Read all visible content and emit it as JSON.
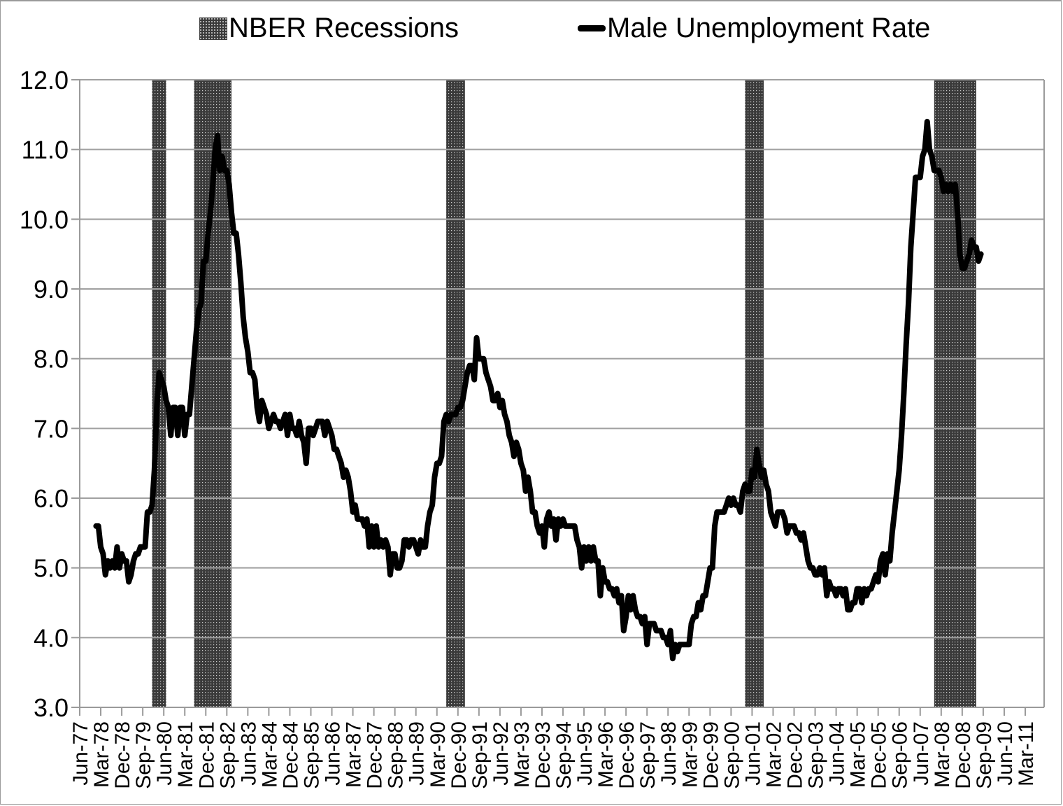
{
  "legend": {
    "recessions_label": "NBER Recessions",
    "line_label": "Male Unemployment Rate"
  },
  "colors": {
    "line": "#000000",
    "recession_fill": "#3a3a3a",
    "grid": "#a0a0a0",
    "axis": "#9a9a9a"
  },
  "chart_data": {
    "type": "line",
    "title": "",
    "xlabel": "",
    "ylabel": "",
    "ylim": [
      3.0,
      12.0
    ],
    "yticks": [
      "3.0",
      "4.0",
      "5.0",
      "6.0",
      "7.0",
      "8.0",
      "9.0",
      "10.0",
      "11.0",
      "12.0"
    ],
    "xticks": [
      "Jun-77",
      "Mar-78",
      "Dec-78",
      "Sep-79",
      "Jun-80",
      "Mar-81",
      "Dec-81",
      "Sep-82",
      "Jun-83",
      "Mar-84",
      "Dec-84",
      "Sep-85",
      "Jun-86",
      "Mar-87",
      "Dec-87",
      "Sep-88",
      "Jun-89",
      "Mar-90",
      "Dec-90",
      "Sep-91",
      "Jun-92",
      "Mar-93",
      "Dec-93",
      "Sep-94",
      "Jun-95",
      "Mar-96",
      "Dec-96",
      "Sep-97",
      "Jun-98",
      "Mar-99",
      "Dec-99",
      "Sep-00",
      "Jun-01",
      "Mar-02",
      "Dec-02",
      "Sep-03",
      "Jun-04",
      "Mar-05",
      "Dec-05",
      "Sep-06",
      "Jun-07",
      "Mar-08",
      "Dec-08",
      "Sep-09",
      "Jun-10",
      "Mar-11"
    ],
    "grid": true,
    "legend_position": "top",
    "recessions": [
      {
        "start": "Jan-80",
        "end": "Jul-80"
      },
      {
        "start": "Jul-81",
        "end": "Nov-82"
      },
      {
        "start": "Jul-90",
        "end": "Mar-91"
      },
      {
        "start": "Mar-01",
        "end": "Nov-01"
      },
      {
        "start": "Dec-07",
        "end": "Jun-09"
      }
    ],
    "series": [
      {
        "name": "Male Unemployment Rate",
        "start": "Jan-78",
        "frequency": "monthly",
        "values": [
          5.6,
          5.6,
          5.3,
          5.2,
          4.9,
          5.1,
          5.0,
          5.1,
          5.0,
          5.3,
          5.0,
          5.2,
          5.1,
          5.1,
          4.8,
          4.9,
          5.1,
          5.2,
          5.2,
          5.3,
          5.3,
          5.3,
          5.8,
          5.8,
          5.9,
          6.4,
          7.3,
          7.8,
          7.7,
          7.6,
          7.4,
          7.3,
          6.9,
          7.3,
          7.3,
          6.9,
          7.3,
          7.3,
          6.9,
          7.2,
          7.2,
          7.6,
          8.0,
          8.4,
          8.7,
          8.8,
          9.4,
          9.4,
          9.8,
          10.1,
          10.5,
          11.0,
          11.2,
          10.7,
          10.9,
          10.7,
          10.7,
          10.5,
          10.1,
          9.8,
          9.8,
          9.5,
          9.1,
          8.6,
          8.3,
          8.1,
          7.8,
          7.8,
          7.7,
          7.3,
          7.1,
          7.4,
          7.3,
          7.2,
          7.0,
          7.1,
          7.2,
          7.1,
          7.1,
          7.0,
          7.1,
          7.2,
          6.9,
          7.2,
          7.0,
          7.0,
          6.9,
          7.1,
          6.9,
          6.8,
          6.5,
          7.0,
          7.0,
          6.9,
          7.0,
          7.1,
          7.1,
          7.1,
          6.9,
          7.1,
          7.0,
          6.9,
          6.7,
          6.7,
          6.6,
          6.5,
          6.3,
          6.4,
          6.3,
          6.1,
          5.8,
          5.9,
          5.7,
          5.7,
          5.7,
          5.6,
          5.7,
          5.3,
          5.6,
          5.3,
          5.6,
          5.3,
          5.4,
          5.3,
          5.4,
          5.3,
          4.9,
          5.2,
          5.2,
          5.0,
          5.0,
          5.1,
          5.4,
          5.4,
          5.3,
          5.4,
          5.4,
          5.3,
          5.2,
          5.4,
          5.3,
          5.3,
          5.6,
          5.8,
          5.9,
          6.3,
          6.5,
          6.5,
          6.6,
          7.1,
          7.2,
          7.1,
          7.2,
          7.2,
          7.2,
          7.3,
          7.3,
          7.4,
          7.6,
          7.8,
          7.9,
          7.9,
          7.7,
          8.3,
          8.0,
          8.0,
          8.0,
          7.8,
          7.7,
          7.6,
          7.4,
          7.4,
          7.5,
          7.3,
          7.4,
          7.2,
          7.1,
          6.9,
          6.8,
          6.6,
          6.8,
          6.7,
          6.5,
          6.4,
          6.1,
          6.3,
          6.1,
          5.8,
          5.8,
          5.6,
          5.5,
          5.6,
          5.3,
          5.7,
          5.8,
          5.6,
          5.7,
          5.4,
          5.7,
          5.6,
          5.7,
          5.6,
          5.6,
          5.6,
          5.6,
          5.6,
          5.4,
          5.3,
          5.0,
          5.3,
          5.1,
          5.3,
          5.1,
          5.3,
          5.1,
          5.1,
          4.6,
          5.0,
          4.8,
          4.8,
          4.7,
          4.7,
          4.6,
          4.7,
          4.5,
          4.6,
          4.1,
          4.3,
          4.6,
          4.4,
          4.6,
          4.4,
          4.3,
          4.3,
          4.2,
          4.3,
          3.9,
          4.2,
          4.2,
          4.2,
          4.1,
          4.1,
          4.1,
          4.0,
          4.0,
          3.9,
          4.1,
          3.7,
          3.9,
          3.8,
          3.9,
          3.9,
          3.9,
          3.9,
          3.9,
          4.2,
          4.3,
          4.3,
          4.5,
          4.4,
          4.6,
          4.6,
          4.8,
          5.0,
          5.0,
          5.6,
          5.8,
          5.8,
          5.8,
          5.8,
          5.9,
          6.0,
          5.9,
          6.0,
          5.9,
          5.9,
          5.8,
          6.1,
          6.2,
          6.1,
          6.1,
          6.4,
          6.3,
          6.7,
          6.5,
          6.3,
          6.4,
          6.2,
          6.1,
          5.8,
          5.7,
          5.6,
          5.8,
          5.8,
          5.8,
          5.7,
          5.5,
          5.6,
          5.6,
          5.6,
          5.5,
          5.5,
          5.4,
          5.5,
          5.3,
          5.1,
          5.0,
          5.0,
          4.9,
          4.9,
          5.0,
          4.9,
          5.0,
          4.6,
          4.8,
          4.7,
          4.7,
          4.6,
          4.7,
          4.7,
          4.6,
          4.7,
          4.4,
          4.4,
          4.5,
          4.5,
          4.7,
          4.7,
          4.5,
          4.7,
          4.6,
          4.7,
          4.7,
          4.8,
          4.9,
          4.8,
          5.1,
          5.2,
          4.9,
          5.2,
          5.1,
          5.5,
          5.8,
          6.1,
          6.4,
          6.9,
          7.5,
          8.2,
          8.8,
          9.6,
          10.1,
          10.6,
          10.6,
          10.6,
          10.9,
          11.0,
          11.4,
          11.0,
          10.9,
          10.7,
          10.7,
          10.7,
          10.6,
          10.4,
          10.5,
          10.4,
          10.5,
          10.4,
          10.5,
          10.1,
          9.5,
          9.3,
          9.3,
          9.4,
          9.5,
          9.7,
          9.6,
          9.6,
          9.4,
          9.5
        ]
      }
    ]
  }
}
